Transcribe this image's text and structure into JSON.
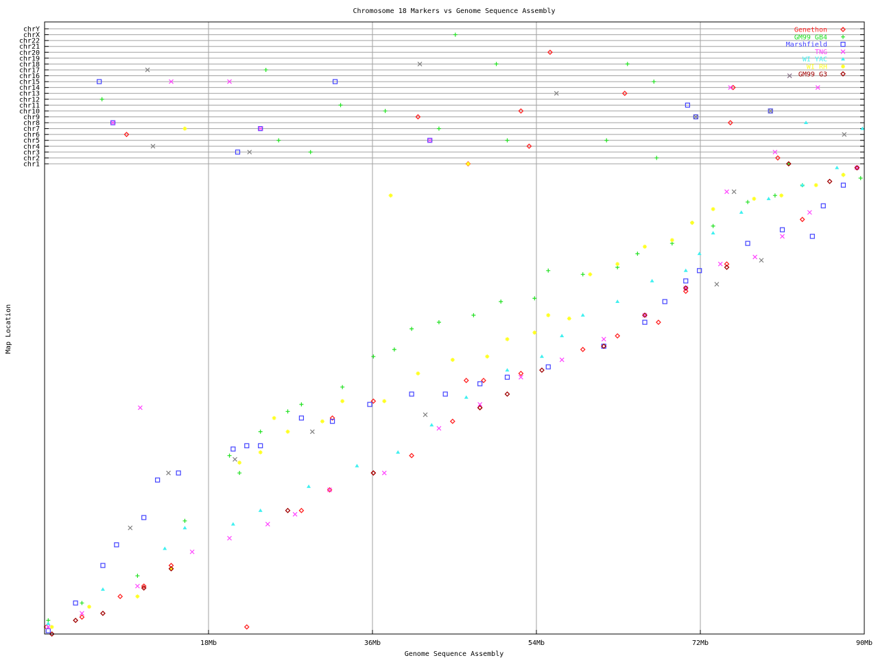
{
  "chart_data": {
    "type": "scatter",
    "title": "Chromosome 18 Markers vs Genome Sequence Assembly",
    "xlabel": "Genome Sequence Assembly",
    "ylabel": "Map Location",
    "xlim": [
      0,
      90
    ],
    "x_ticks": [
      18,
      36,
      54,
      72,
      90
    ],
    "x_tick_labels": [
      "18Mb",
      "36Mb",
      "54Mb",
      "72Mb",
      "90Mb"
    ],
    "chromosome_rows": [
      "chr1",
      "chr2",
      "chr3",
      "chr4",
      "chr5",
      "chr6",
      "chr7",
      "chr8",
      "chr9",
      "chr10",
      "chr11",
      "chr12",
      "chr13",
      "chr14",
      "chr15",
      "chr16",
      "chr17",
      "chr18",
      "chr19",
      "chr20",
      "chr21",
      "chr22",
      "chrX",
      "chrY"
    ],
    "ylim": [
      0,
      100
    ],
    "grid": true,
    "legend_position": "top-right",
    "series": [
      {
        "name": "Genethon",
        "color": "#ff2020",
        "marker": "diamond",
        "points": [
          [
            0.2,
            1.5
          ],
          [
            4.1,
            3.6
          ],
          [
            8.3,
            8
          ],
          [
            10.9,
            10.2
          ],
          [
            13.9,
            14.6
          ],
          [
            22.2,
            1.5
          ],
          [
            28.2,
            26.3
          ],
          [
            31.3,
            30.7
          ],
          [
            36.1,
            34.3
          ],
          [
            40.3,
            38
          ],
          [
            44.8,
            45.3
          ],
          [
            47.8,
            48.2
          ],
          [
            52.3,
            55.5
          ],
          [
            59.1,
            60.6
          ],
          [
            62.9,
            63.5
          ],
          [
            67.4,
            66.4
          ],
          [
            70.4,
            73
          ],
          [
            74.9,
            78.8
          ],
          [
            83.2,
            88.3
          ],
          [
            89.2,
            99.3
          ],
          [
            31.6,
            46
          ],
          [
            36.1,
            49.6
          ],
          [
            46.3,
            54
          ],
          [
            48.2,
            54
          ]
        ],
        "chrom_hits": [
          [
            "chr20",
            55.5
          ],
          [
            "chr9",
            41
          ],
          [
            "chr10",
            52.3
          ],
          [
            "chr4",
            53.2
          ],
          [
            "chr1",
            46.5
          ],
          [
            "chr6",
            9
          ],
          [
            "chr14",
            75.6
          ],
          [
            "chr8",
            75.3
          ],
          [
            "chr2",
            80.5
          ],
          [
            "chr13",
            63.7
          ]
        ]
      },
      {
        "name": "GM99 GB4",
        "color": "#20e020",
        "marker": "plus",
        "points": [
          [
            0.4,
            2.9
          ],
          [
            4.1,
            6.6
          ],
          [
            10.2,
            12.4
          ],
          [
            15.4,
            24.1
          ],
          [
            20.3,
            38
          ],
          [
            21.4,
            34.3
          ],
          [
            23.7,
            43.1
          ],
          [
            26.7,
            47.4
          ],
          [
            28.2,
            48.9
          ],
          [
            32.7,
            52.6
          ],
          [
            36.1,
            59.1
          ],
          [
            38.4,
            60.6
          ],
          [
            40.3,
            65
          ],
          [
            43.3,
            66.4
          ],
          [
            47.1,
            67.9
          ],
          [
            50.1,
            70.8
          ],
          [
            53.8,
            71.5
          ],
          [
            55.3,
            77.4
          ],
          [
            59.1,
            76.6
          ],
          [
            62.9,
            78.1
          ],
          [
            65.1,
            81
          ],
          [
            68.9,
            83.2
          ],
          [
            71.1,
            87.6
          ],
          [
            73.4,
            86.9
          ],
          [
            77.2,
            92
          ],
          [
            80.2,
            93.4
          ],
          [
            83.2,
            95.6
          ],
          [
            87.7,
            97.8
          ],
          [
            89.6,
            97.1
          ]
        ],
        "chrom_hits": [
          [
            "chrX",
            45.1
          ],
          [
            "chr17",
            24.3
          ],
          [
            "chr18",
            49.6
          ],
          [
            "chr12",
            6.3
          ],
          [
            "chr11",
            32.5
          ],
          [
            "chr10",
            37.4
          ],
          [
            "chr7",
            43.3
          ],
          [
            "chr5",
            25.7
          ],
          [
            "chr3",
            29.2
          ],
          [
            "chr5",
            50.8
          ],
          [
            "chr5",
            61.7
          ],
          [
            "chr15",
            66.9
          ],
          [
            "chr2",
            67.2
          ],
          [
            "chr1",
            81.7
          ],
          [
            "chr18",
            64
          ]
        ]
      },
      {
        "name": "Marshfield",
        "color": "#4040ff",
        "marker": "square",
        "points": [
          [
            0.4,
            0.7
          ],
          [
            3.4,
            6.6
          ],
          [
            6.4,
            14.6
          ],
          [
            7.9,
            19
          ],
          [
            10.9,
            24.8
          ],
          [
            12.4,
            32.8
          ],
          [
            14.7,
            34.3
          ],
          [
            20.7,
            39.4
          ],
          [
            22.2,
            40.1
          ],
          [
            23.7,
            40.1
          ],
          [
            28.2,
            46
          ],
          [
            31.6,
            45.3
          ],
          [
            35.7,
            48.9
          ],
          [
            40.3,
            51.1
          ],
          [
            44,
            51.1
          ],
          [
            47.8,
            53.3
          ],
          [
            50.8,
            54.7
          ],
          [
            55.3,
            56.9
          ],
          [
            61.4,
            61.3
          ],
          [
            65.9,
            66.4
          ],
          [
            68.1,
            70.8
          ],
          [
            70.4,
            75.2
          ],
          [
            71.9,
            77.4
          ],
          [
            77.2,
            83.2
          ],
          [
            81,
            86.1
          ],
          [
            84.3,
            84.7
          ],
          [
            85.5,
            91.2
          ],
          [
            87.7,
            95.6
          ]
        ],
        "chrom_hits": [
          [
            "chr15",
            6
          ],
          [
            "chr8",
            7.5
          ],
          [
            "chr7",
            23.7
          ],
          [
            "chr3",
            21.2
          ],
          [
            "chr15",
            31.9
          ],
          [
            "chr5",
            42.3
          ],
          [
            "chr11",
            70.6
          ],
          [
            "chr10",
            79.7
          ],
          [
            "chr9",
            71.5
          ]
        ]
      },
      {
        "name": "TNG",
        "color": "#ff40ff",
        "marker": "cross",
        "points": [
          [
            0.4,
            1.5
          ],
          [
            4.1,
            4.4
          ],
          [
            10.2,
            10.2
          ],
          [
            16.2,
            17.5
          ],
          [
            20.3,
            20.4
          ],
          [
            24.5,
            23.4
          ],
          [
            27.5,
            25.5
          ],
          [
            31.3,
            30.7
          ],
          [
            37.3,
            34.3
          ],
          [
            43.3,
            43.8
          ],
          [
            47.8,
            48.9
          ],
          [
            52.3,
            54.7
          ],
          [
            56.8,
            58.4
          ],
          [
            61.4,
            62.8
          ],
          [
            65.9,
            67.9
          ],
          [
            70.4,
            73.7
          ],
          [
            74.2,
            78.8
          ],
          [
            78,
            80.3
          ],
          [
            81,
            84.7
          ],
          [
            84,
            89.8
          ],
          [
            89.2,
            99.3
          ],
          [
            10.5,
            48.2
          ],
          [
            74.9,
            94.2
          ]
        ],
        "chrom_hits": [
          [
            "chr15",
            13.9
          ],
          [
            "chr15",
            20.3
          ],
          [
            "chr8",
            7.5
          ],
          [
            "chr7",
            23.7
          ],
          [
            "chr5",
            42.3
          ],
          [
            "chr14",
            75.3
          ],
          [
            "chr14",
            84.9
          ],
          [
            "chr3",
            80.2
          ],
          [
            "chr16",
            81.8
          ]
        ]
      },
      {
        "name": "WI YAC",
        "color": "#40f0f0",
        "marker": "triangle",
        "points": [
          [
            0.4,
            2.2
          ],
          [
            6.4,
            9.5
          ],
          [
            13.2,
            18.2
          ],
          [
            15.4,
            22.6
          ],
          [
            20.7,
            23.4
          ],
          [
            23.7,
            26.3
          ],
          [
            29,
            31.4
          ],
          [
            34.3,
            35.8
          ],
          [
            38.8,
            38.7
          ],
          [
            42.5,
            44.5
          ],
          [
            46.3,
            50.4
          ],
          [
            50.8,
            56.2
          ],
          [
            54.6,
            59.1
          ],
          [
            56.8,
            63.5
          ],
          [
            59.1,
            67.9
          ],
          [
            62.9,
            70.8
          ],
          [
            66.7,
            75.2
          ],
          [
            70.4,
            77.4
          ],
          [
            71.9,
            81
          ],
          [
            73.4,
            85.4
          ],
          [
            76.5,
            89.8
          ],
          [
            79.5,
            92.7
          ],
          [
            83.2,
            95.6
          ],
          [
            87,
            99.3
          ]
        ],
        "chrom_hits": [
          [
            "chr8",
            83.6
          ],
          [
            "chr7",
            89.8
          ]
        ]
      },
      {
        "name": "WI RH",
        "color": "#ffff20",
        "marker": "star",
        "points": [
          [
            0.8,
            1.5
          ],
          [
            4.9,
            5.8
          ],
          [
            10.2,
            8
          ],
          [
            13.9,
            13.9
          ],
          [
            21.4,
            36.5
          ],
          [
            23.7,
            38.7
          ],
          [
            26.7,
            43.1
          ],
          [
            25.2,
            46
          ],
          [
            30.5,
            45.3
          ],
          [
            32.7,
            49.6
          ],
          [
            37.3,
            49.6
          ],
          [
            41,
            55.5
          ],
          [
            44.8,
            58.4
          ],
          [
            48.6,
            59.1
          ],
          [
            50.8,
            62.8
          ],
          [
            53.8,
            64.2
          ],
          [
            55.3,
            67.9
          ],
          [
            57.6,
            67.2
          ],
          [
            59.9,
            76.6
          ],
          [
            62.9,
            78.8
          ],
          [
            65.9,
            82.5
          ],
          [
            68.9,
            83.9
          ],
          [
            71.1,
            87.6
          ],
          [
            73.4,
            90.5
          ],
          [
            77.9,
            92.7
          ],
          [
            80.9,
            93.4
          ],
          [
            84.7,
            95.6
          ],
          [
            87.7,
            97.8
          ],
          [
            38,
            93.4
          ]
        ],
        "chrom_hits": [
          [
            "chr7",
            15.4
          ],
          [
            "chr1",
            46.5
          ]
        ]
      },
      {
        "name": "GM99 G3",
        "color": "#a00000",
        "marker": "diamond",
        "points": [
          [
            0.8,
            0
          ],
          [
            3.4,
            2.9
          ],
          [
            6.4,
            4.4
          ],
          [
            10.9,
            9.8
          ],
          [
            13.9,
            13.9
          ],
          [
            26.7,
            26.3
          ],
          [
            36.1,
            34.3
          ],
          [
            47.8,
            48.2
          ],
          [
            50.8,
            51.1
          ],
          [
            54.6,
            56.2
          ],
          [
            61.4,
            61.3
          ],
          [
            65.9,
            67.9
          ],
          [
            70.4,
            73.7
          ],
          [
            74.9,
            78.1
          ],
          [
            86.2,
            96.4
          ],
          [
            89.2,
            99.3
          ]
        ],
        "chrom_hits": [
          [
            "chr1",
            81.7
          ]
        ]
      },
      {
        "name": "",
        "color": "#808080",
        "marker": "cross",
        "points": [
          [
            9.4,
            22.6
          ],
          [
            13.6,
            34.3
          ],
          [
            20.9,
            37.2
          ],
          [
            29.4,
            43.1
          ],
          [
            41.8,
            46.7
          ],
          [
            73.8,
            74.5
          ],
          [
            78.7,
            79.6
          ],
          [
            75.7,
            94.2
          ]
        ],
        "chrom_hits": [
          [
            "chr17",
            11.3
          ],
          [
            "chr4",
            11.9
          ],
          [
            "chr3",
            22.5
          ],
          [
            "chr18",
            41.2
          ],
          [
            "chr13",
            56.2
          ],
          [
            "chr9",
            71.5
          ],
          [
            "chr10",
            79.7
          ],
          [
            "chr16",
            81.8
          ],
          [
            "chr6",
            87.8
          ]
        ]
      }
    ]
  }
}
